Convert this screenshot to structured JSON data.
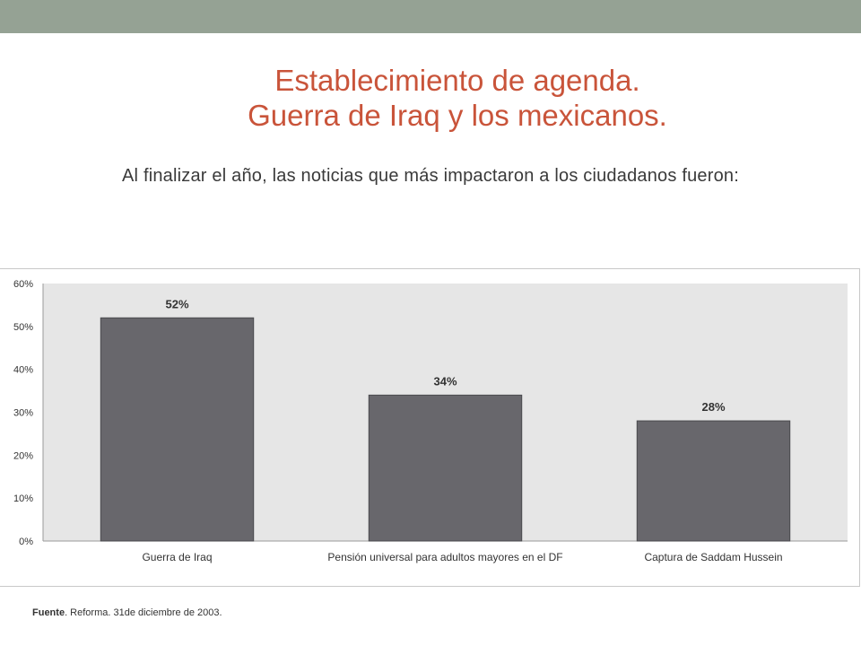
{
  "header": {
    "title_line1": "Establecimiento de agenda.",
    "title_line2": "Guerra de Iraq y los mexicanos."
  },
  "subtitle": "Al finalizar el año, las noticias que más impactaron a los ciudadanos fueron:",
  "colors": {
    "top_bar": "#95a294",
    "title": "#c9543a",
    "bar": "#68676c",
    "plot_bg": "#e6e6e6"
  },
  "chart_data": {
    "type": "bar",
    "categories": [
      "Guerra de Iraq",
      "Pensión universal para adultos mayores en el DF",
      "Captura de Saddam Hussein"
    ],
    "values": [
      52,
      34,
      28
    ],
    "data_labels": [
      "52%",
      "34%",
      "28%"
    ],
    "yticks": [
      "0%",
      "10%",
      "20%",
      "30%",
      "40%",
      "50%",
      "60%"
    ],
    "ylim": [
      0,
      60
    ],
    "grid": false,
    "legend": "none"
  },
  "source": {
    "label": "Fuente",
    "text": ". Reforma. 31de diciembre de 2003."
  }
}
